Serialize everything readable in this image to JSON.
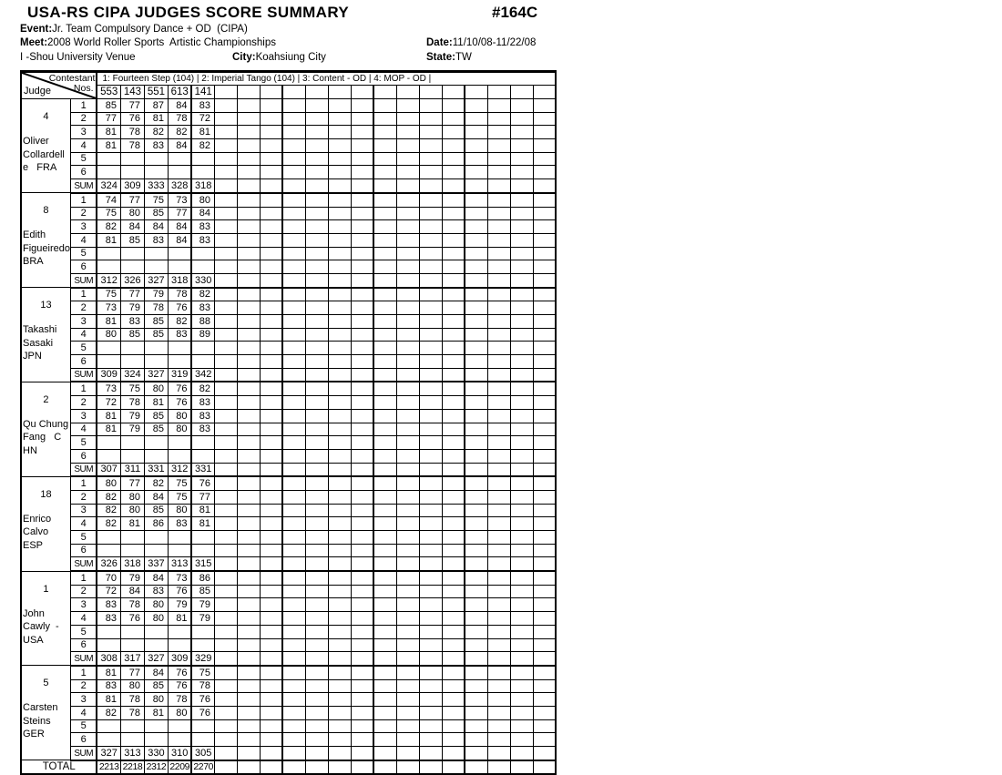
{
  "header": {
    "title": "USA-RS CIPA JUDGES SCORE SUMMARY",
    "doc_number": "#164C",
    "event_label": "Event:",
    "event": "Jr. Team Compulsory Dance + OD  (CIPA)",
    "meet_label": "Meet:",
    "meet": "2008 World Roller Sports  Artistic Championships",
    "date_label": "Date:",
    "date": "11/10/08-11/22/08",
    "venue": "I -Shou University Venue",
    "city_label": "City:",
    "city": "Koahsiung City",
    "state_label": "State:",
    "state": "TW"
  },
  "table": {
    "corner": {
      "top": "Contestant",
      "mid": "Nos.",
      "bottom": "Judge"
    },
    "dances_header": "1: Fourteen Step (104) |  2: Imperial Tango (104) |  3: Content - OD  |  4: MOP - OD  |",
    "contestants": [
      "553",
      "143",
      "551",
      "613",
      "141"
    ],
    "num_score_cols": 20,
    "group_size": 4,
    "row_labels": [
      "1",
      "2",
      "3",
      "4",
      "5",
      "6"
    ],
    "sum_label": "SUM",
    "total_label": "TOTAL",
    "judges": [
      {
        "number": "4",
        "name_lines": [
          "Oliver",
          "Collardell",
          "e   FRA"
        ],
        "rows": [
          [
            85,
            77,
            87,
            84,
            83
          ],
          [
            77,
            76,
            81,
            78,
            72
          ],
          [
            81,
            78,
            82,
            82,
            81
          ],
          [
            81,
            78,
            83,
            84,
            82
          ]
        ],
        "sum": [
          324,
          309,
          333,
          328,
          318
        ]
      },
      {
        "number": "8",
        "name_lines": [
          "Edith",
          "Figueiredo",
          "BRA"
        ],
        "rows": [
          [
            74,
            77,
            75,
            73,
            80
          ],
          [
            75,
            80,
            85,
            77,
            84
          ],
          [
            82,
            84,
            84,
            84,
            83
          ],
          [
            81,
            85,
            83,
            84,
            83
          ]
        ],
        "sum": [
          312,
          326,
          327,
          318,
          330
        ]
      },
      {
        "number": "13",
        "name_lines": [
          "Takashi",
          "Sasaki",
          "JPN"
        ],
        "rows": [
          [
            75,
            77,
            79,
            78,
            82
          ],
          [
            73,
            79,
            78,
            76,
            83
          ],
          [
            81,
            83,
            85,
            82,
            88
          ],
          [
            80,
            85,
            85,
            83,
            89
          ]
        ],
        "sum": [
          309,
          324,
          327,
          319,
          342
        ]
      },
      {
        "number": "2",
        "name_lines": [
          "Qu Chung",
          "Fang   C",
          "HN"
        ],
        "rows": [
          [
            73,
            75,
            80,
            76,
            82
          ],
          [
            72,
            78,
            81,
            76,
            83
          ],
          [
            81,
            79,
            85,
            80,
            83
          ],
          [
            81,
            79,
            85,
            80,
            83
          ]
        ],
        "sum": [
          307,
          311,
          331,
          312,
          331
        ]
      },
      {
        "number": "18",
        "name_lines": [
          "Enrico",
          "Calvo",
          "ESP"
        ],
        "rows": [
          [
            80,
            77,
            82,
            75,
            76
          ],
          [
            82,
            80,
            84,
            75,
            77
          ],
          [
            82,
            80,
            85,
            80,
            81
          ],
          [
            82,
            81,
            86,
            83,
            81
          ]
        ],
        "sum": [
          326,
          318,
          337,
          313,
          315
        ]
      },
      {
        "number": "1",
        "name_lines": [
          "John",
          "Cawly  -",
          "USA"
        ],
        "rows": [
          [
            70,
            79,
            84,
            73,
            86
          ],
          [
            72,
            84,
            83,
            76,
            85
          ],
          [
            83,
            78,
            80,
            79,
            79
          ],
          [
            83,
            76,
            80,
            81,
            79
          ]
        ],
        "sum": [
          308,
          317,
          327,
          309,
          329
        ]
      },
      {
        "number": "5",
        "name_lines": [
          "Carsten",
          "Steins",
          "GER"
        ],
        "rows": [
          [
            81,
            77,
            84,
            76,
            75
          ],
          [
            83,
            80,
            85,
            76,
            78
          ],
          [
            81,
            78,
            80,
            78,
            76
          ],
          [
            82,
            78,
            81,
            80,
            76
          ]
        ],
        "sum": [
          327,
          313,
          330,
          310,
          305
        ]
      }
    ],
    "totals": [
      2213,
      2218,
      2312,
      2209,
      2270
    ]
  }
}
